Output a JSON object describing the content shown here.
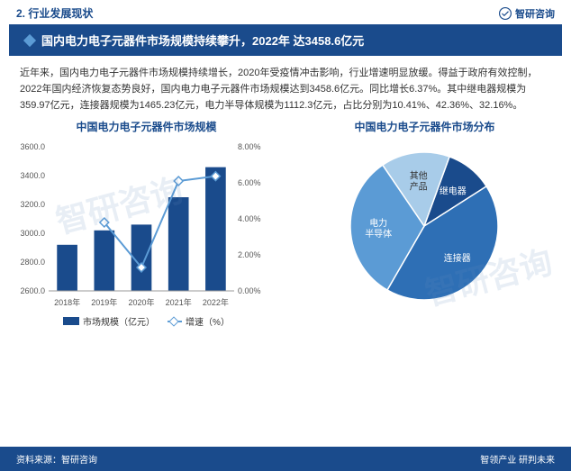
{
  "header": {
    "section_label": "2. 行业发展现状",
    "brand": "智研咨询"
  },
  "title_bar": {
    "text": "国内电力电子元器件市场规模持续攀升，2022年 达3458.6亿元"
  },
  "body_paragraph": "近年来，国内电力电子元器件市场规模持续增长，2020年受疫情冲击影响，行业增速明显放缓。得益于政府有效控制，2022年国内经济恢复态势良好，国内电力电子元器件市场规模达到3458.6亿元。同比增长6.37%。其中继电器规模为359.97亿元，连接器规模为1465.23亿元，电力半导体规模为1112.3亿元，占比分别为10.41%、42.36%、32.16%。",
  "bar_chart": {
    "title": "中国电力电子元器件市场规模",
    "type": "bar_line_combo",
    "categories": [
      "2018年",
      "2019年",
      "2020年",
      "2021年",
      "2022年"
    ],
    "bar_values": [
      2920,
      3020,
      3060,
      3250,
      3458.6
    ],
    "line_values": [
      null,
      3.8,
      1.3,
      6.1,
      6.37
    ],
    "bar_color": "#1a4b8c",
    "line_color": "#5b9bd5",
    "y1_label": "",
    "y1_min": 2600,
    "y1_max": 3600,
    "y1_ticks": [
      "2600.0",
      "2800.0",
      "3000.0",
      "3200.0",
      "3400.0",
      "3600.0"
    ],
    "y2_min": 0,
    "y2_max": 8,
    "y2_ticks": [
      "0.00%",
      "2.00%",
      "4.00%",
      "6.00%",
      "8.00%"
    ],
    "legend_bar": "市场规模（亿元）",
    "legend_line": "增速（%）",
    "background_color": "#ffffff",
    "bar_width_ratio": 0.55
  },
  "pie_chart": {
    "title": "中国电力电子元器件市场分布",
    "type": "pie",
    "slices": [
      {
        "label": "继电器",
        "value": 10.41,
        "color": "#1a4b8c"
      },
      {
        "label": "连接器",
        "value": 42.36,
        "color": "#2e6fb5"
      },
      {
        "label": "电力半导体",
        "value": 32.16,
        "color": "#5b9bd5"
      },
      {
        "label": "其他产品",
        "value": 15.07,
        "color": "#a8cce9"
      }
    ],
    "start_angle_deg": -70,
    "radius": 82,
    "stroke": "#ffffff",
    "stroke_width": 1.5
  },
  "source_bar": {
    "left": "资料来源：智研咨询",
    "right": "智领产业  研判未来"
  },
  "watermark_text": "智研咨询"
}
